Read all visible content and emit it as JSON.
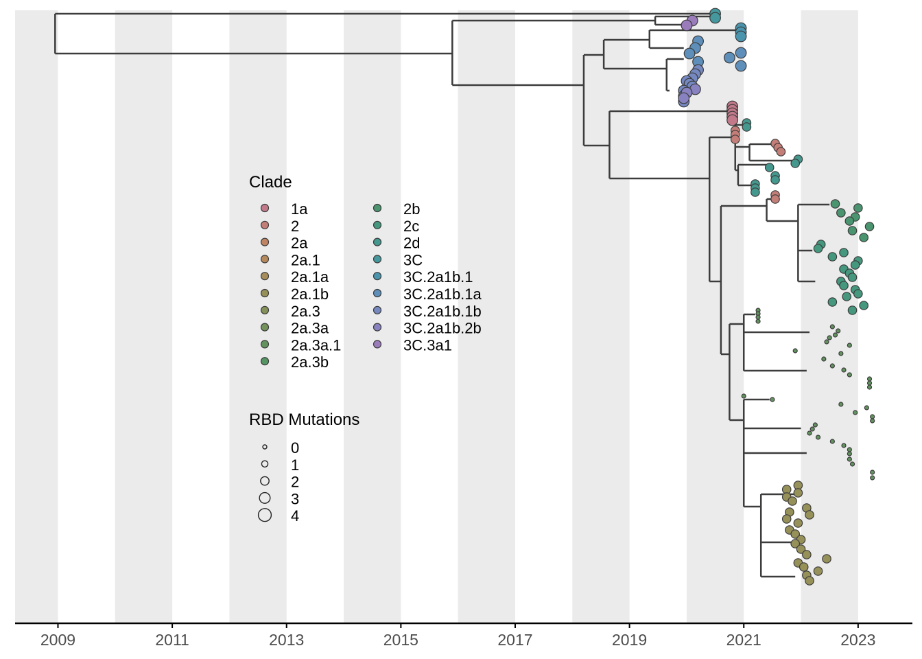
{
  "chart_data": {
    "type": "phylogenetic-tree",
    "x_axis": {
      "type": "time",
      "range": [
        2008.25,
        2023.95
      ],
      "ticks": [
        "2009",
        "2011",
        "2013",
        "2015",
        "2017",
        "2019",
        "2021",
        "2023"
      ],
      "shaded_bands": [
        [
          2008,
          2009
        ],
        [
          2010,
          2011
        ],
        [
          2012,
          2013
        ],
        [
          2014,
          2015
        ],
        [
          2016,
          2017
        ],
        [
          2018,
          2019
        ],
        [
          2020,
          2021
        ],
        [
          2022,
          2023
        ]
      ],
      "band_color": "#ebebeb"
    },
    "legend_clade": {
      "title": "Clade",
      "items": [
        {
          "label": "1a",
          "color": "#c27a8a"
        },
        {
          "label": "2",
          "color": "#c47e78"
        },
        {
          "label": "2a",
          "color": "#bf8464"
        },
        {
          "label": "2a.1",
          "color": "#b5895c"
        },
        {
          "label": "2a.1a",
          "color": "#a78d5b"
        },
        {
          "label": "2a.1b",
          "color": "#969059"
        },
        {
          "label": "2a.3",
          "color": "#84915a"
        },
        {
          "label": "2a.3a",
          "color": "#73925c"
        },
        {
          "label": "2a.3a.1",
          "color": "#62935f"
        },
        {
          "label": "2a.3b",
          "color": "#559463"
        },
        {
          "label": "2b",
          "color": "#4a9470"
        },
        {
          "label": "2c",
          "color": "#45977e"
        },
        {
          "label": "2d",
          "color": "#45988e"
        },
        {
          "label": "3C",
          "color": "#45989d"
        },
        {
          "label": "3C.2a1b.1",
          "color": "#4a95ad"
        },
        {
          "label": "3C.2a1b.1a",
          "color": "#5e8fba"
        },
        {
          "label": "3C.2a1b.1b",
          "color": "#7588c0"
        },
        {
          "label": "3C.2a1b.2b",
          "color": "#8882c0"
        },
        {
          "label": "3C.3a1",
          "color": "#9a7cbb"
        }
      ]
    },
    "legend_size": {
      "title": "RBD Mutations",
      "items": [
        "0",
        "1",
        "2",
        "3",
        "4"
      ]
    },
    "tip_groups": [
      {
        "clade": "3C",
        "mutations": 3,
        "x": [
          2020.5,
          2020.5
        ]
      },
      {
        "clade": "3C.3a1",
        "mutations": 3,
        "x": [
          2020.1,
          2020.0
        ]
      },
      {
        "clade": "3C.2a1b.1",
        "mutations": 3,
        "x": [
          2020.95,
          2020.95,
          2020.95
        ]
      },
      {
        "clade": "3C.2a1b.1a",
        "mutations": 3,
        "x": [
          2020.2,
          2020.15,
          2020.05,
          2020.2,
          2020.95,
          2020.75,
          2020.95
        ]
      },
      {
        "clade": "3C.2a1b.1b",
        "mutations": 3,
        "x": [
          2020.2,
          2020.15,
          2020.1,
          2020.0,
          2020.05,
          2020.1,
          2019.95,
          2019.95,
          2019.95
        ]
      },
      {
        "clade": "3C.2a1b.2b",
        "mutations": 3,
        "x": [
          2020.15,
          2020.0,
          2019.95
        ]
      },
      {
        "clade": "1a",
        "mutations": 3,
        "x": [
          2020.8,
          2020.8,
          2020.8,
          2020.8,
          2020.8
        ]
      },
      {
        "clade": "2",
        "mutations": 2,
        "x": [
          2020.85,
          2020.85,
          2020.85,
          2021.55,
          2021.6,
          2021.65,
          2021.55,
          2021.55
        ]
      },
      {
        "clade": "2d",
        "mutations": 2,
        "x": [
          2021.05,
          2021.05,
          2021.95,
          2021.9,
          2021.45,
          2021.55,
          2021.55,
          2021.2,
          2021.2,
          2021.2
        ]
      },
      {
        "clade": "2b",
        "mutations": 2,
        "x": [
          2022.6,
          2023.0,
          2022.7,
          2022.95,
          2022.85,
          2023.2,
          2022.9,
          2023.1
        ]
      },
      {
        "clade": "2c",
        "mutations": 2,
        "x": [
          2022.35,
          2022.3,
          2022.75,
          2022.55,
          2023.0,
          2022.95,
          2022.75,
          2022.85,
          2022.9,
          2022.7,
          2022.75,
          2022.95,
          2023.0,
          2022.8,
          2022.55,
          2023.1,
          2022.9
        ]
      },
      {
        "clade": "2a.3a.1",
        "mutations": 0,
        "x": [
          2021.25,
          2021.25,
          2021.25,
          2021.25,
          2022.55,
          2022.65,
          2022.6,
          2022.5,
          2022.45,
          2022.85,
          2021.9,
          2022.7,
          2022.4,
          2022.55,
          2022.75,
          2022.85,
          2023.2,
          2023.2,
          2023.2,
          2021.0,
          2021.5,
          2022.7,
          2023.15,
          2022.95,
          2023.25,
          2023.25,
          2022.25,
          2022.2,
          2022.15,
          2022.3,
          2022.55,
          2022.75,
          2022.85,
          2022.85,
          2022.85,
          2022.9,
          2023.25,
          2023.25
        ]
      },
      {
        "clade": "2a.1b",
        "mutations": 2,
        "x": [
          2021.95,
          2021.75,
          2021.95,
          2021.75,
          2021.85,
          2022.1,
          2021.8,
          2022.15,
          2021.75,
          2021.95,
          2021.8,
          2021.9,
          2022.0,
          2021.9,
          2022.0,
          2022.1,
          2022.45,
          2021.95,
          2022.05,
          2022.3,
          2022.1,
          2022.15
        ]
      }
    ]
  }
}
